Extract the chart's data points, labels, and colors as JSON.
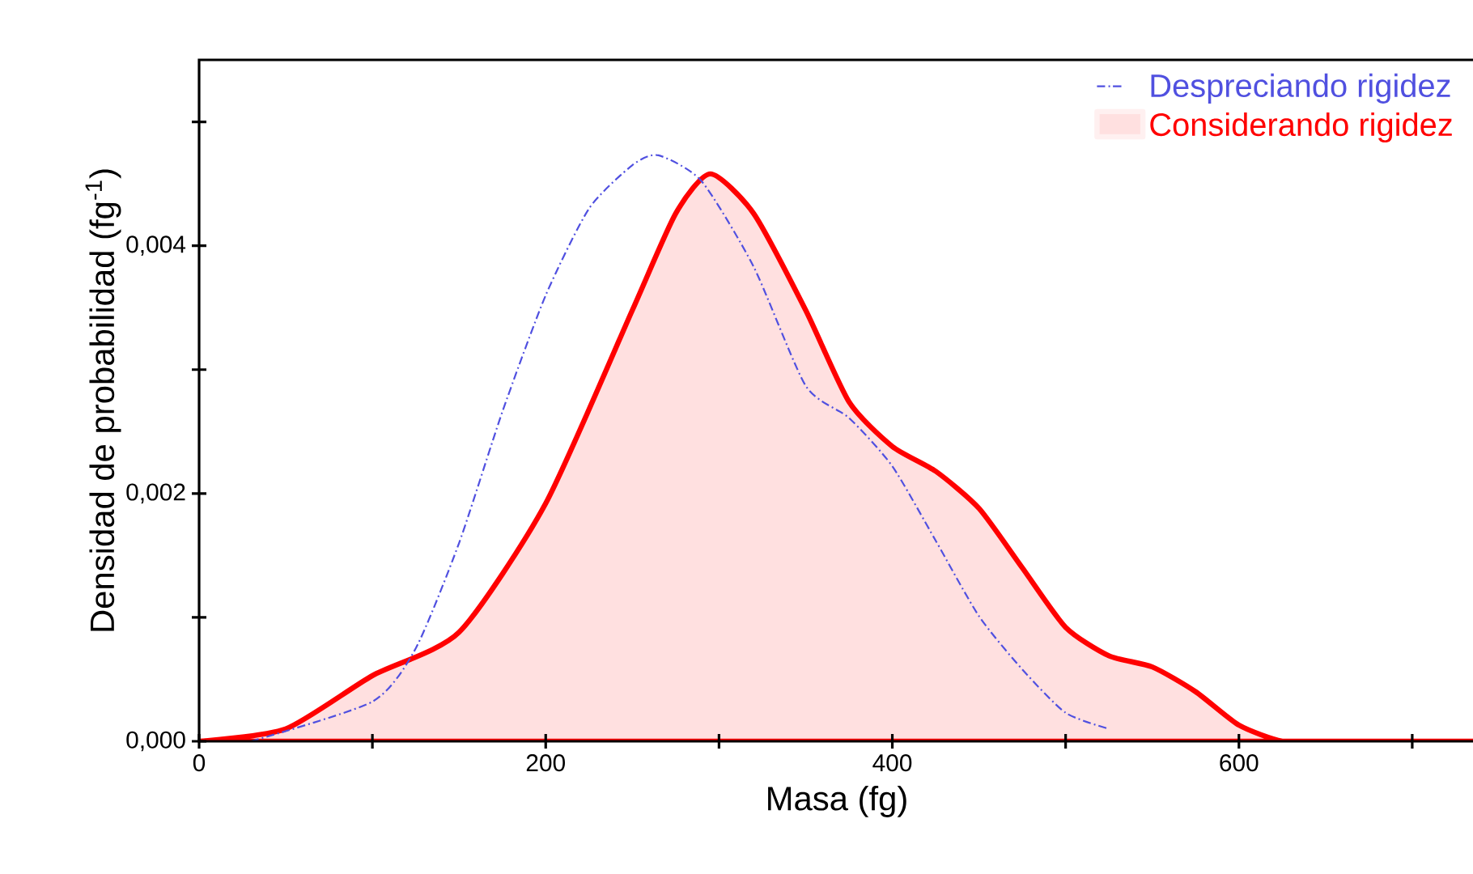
{
  "chart_data": {
    "type": "line",
    "xlabel": "Masa (fg)",
    "ylabel": "Densidad de probabilidad (fg$^{-1}$)",
    "xlim": [
      0,
      736
    ],
    "ylim": [
      0,
      0.0055
    ],
    "xticks": [
      0,
      {
        "value": 100,
        "label": null
      },
      200,
      {
        "value": 300,
        "label": null
      },
      400,
      {
        "value": 500,
        "label": null
      },
      600,
      {
        "value": 700,
        "label": null
      }
    ],
    "yticks": [
      {
        "value": 0,
        "label": "0,000"
      },
      {
        "value": 0.001,
        "label": null
      },
      {
        "value": 0.002,
        "label": "0,002"
      },
      {
        "value": 0.003,
        "label": null
      },
      {
        "value": 0.004,
        "label": "0,004"
      },
      {
        "value": 0.005,
        "label": null
      }
    ],
    "legend": "top right",
    "grid": false,
    "series": [
      {
        "name": "Considerando rigidez",
        "type": "area",
        "color": "#ff0000",
        "line_style": "solid",
        "x": [
          0,
          50,
          100,
          150,
          200,
          250,
          275,
          295,
          320,
          350,
          375,
          400,
          425,
          450,
          475,
          500,
          525,
          550,
          575,
          600,
          625,
          650,
          736
        ],
        "values": [
          0,
          0.0001,
          0.00053,
          0.00088,
          0.00192,
          0.00348,
          0.00426,
          0.00458,
          0.00426,
          0.00348,
          0.00274,
          0.00238,
          0.00218,
          0.00188,
          0.0014,
          0.00092,
          0.00069,
          0.0006,
          0.0004,
          0.00013,
          0,
          0,
          0
        ]
      },
      {
        "name": "Despreciando rigidez",
        "color": "#5050e0",
        "line_style": "dashdot",
        "x": [
          30,
          100,
          125,
          150,
          175,
          200,
          225,
          250,
          265,
          290,
          320,
          350,
          375,
          400,
          425,
          450,
          475,
          500,
          525
        ],
        "values": [
          0,
          0.00032,
          0.00075,
          0.0016,
          0.00266,
          0.0036,
          0.0043,
          0.00465,
          0.00473,
          0.00452,
          0.00383,
          0.00287,
          0.00261,
          0.00222,
          0.00162,
          0.00101,
          0.00058,
          0.00023,
          0.0001
        ]
      }
    ]
  }
}
